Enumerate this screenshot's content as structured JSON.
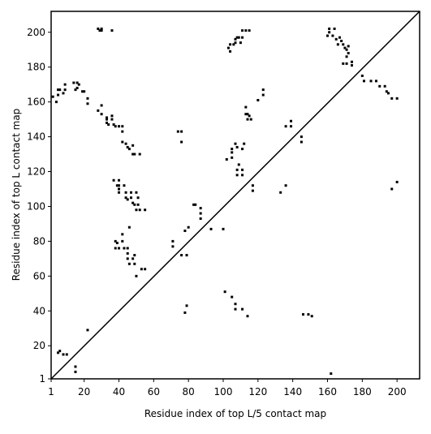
{
  "chart_data": {
    "type": "scatter",
    "xlabel": "Residue index of top L/5 contact map",
    "ylabel": "Residue index of top L contact map",
    "color": "#000000",
    "xlim": [
      1,
      213
    ],
    "ylim": [
      1,
      212
    ],
    "xticks": [
      1,
      20,
      40,
      60,
      80,
      100,
      120,
      140,
      160,
      180,
      200
    ],
    "yticks": [
      1,
      20,
      40,
      60,
      80,
      100,
      120,
      140,
      160,
      180,
      200
    ],
    "x": [
      2,
      4,
      5,
      5,
      6,
      8,
      9,
      9,
      14,
      15,
      16,
      16,
      17,
      19,
      20,
      22,
      22,
      28,
      29,
      30,
      30,
      36,
      28,
      30,
      30,
      33,
      33,
      33,
      34,
      36,
      36,
      37,
      38,
      40,
      42,
      42,
      42,
      44,
      45,
      46,
      48,
      49,
      48,
      52,
      37,
      39,
      40,
      40,
      40,
      40,
      43,
      44,
      44,
      45,
      47,
      47,
      48,
      49,
      50,
      51,
      51,
      52,
      55,
      50,
      46,
      42,
      38,
      39,
      38,
      40,
      43,
      42,
      45,
      45,
      45,
      46,
      49,
      48,
      49,
      50,
      53,
      55,
      71,
      71,
      76,
      79,
      78,
      80,
      78,
      79,
      74,
      76,
      76,
      83,
      84,
      87,
      87,
      87,
      93,
      100,
      101,
      105,
      107,
      107,
      111,
      114,
      102,
      105,
      105,
      105,
      107,
      108,
      108,
      108,
      109,
      111,
      111,
      111,
      112,
      113,
      113,
      114,
      114,
      115,
      116,
      117,
      117,
      120,
      123,
      123,
      133,
      136,
      136,
      139,
      139,
      145,
      145,
      146,
      149,
      151,
      162,
      200,
      197,
      103,
      104,
      104,
      106,
      107,
      107,
      108,
      109,
      110,
      111,
      111,
      113,
      115,
      160,
      161,
      161,
      163,
      164,
      165,
      166,
      167,
      168,
      169,
      170,
      171,
      171,
      172,
      172,
      174,
      174,
      169,
      171,
      180,
      181,
      185,
      188,
      190,
      193,
      194,
      195,
      197,
      200,
      5,
      6,
      8,
      10,
      15,
      15,
      22
    ],
    "values": [
      163,
      160,
      164,
      167,
      167,
      165,
      170,
      167,
      171,
      167,
      168,
      171,
      170,
      166,
      166,
      162,
      159,
      202,
      201,
      201,
      202,
      201,
      155,
      158,
      153,
      151,
      150,
      148,
      147,
      152,
      150,
      147,
      146,
      146,
      146,
      143,
      137,
      136,
      134,
      133,
      130,
      130,
      135,
      130,
      115,
      112,
      112,
      115,
      110,
      108,
      112,
      108,
      105,
      104,
      105,
      108,
      102,
      101,
      108,
      105,
      101,
      98,
      98,
      98,
      88,
      84,
      80,
      79,
      76,
      76,
      76,
      80,
      76,
      73,
      70,
      67,
      67,
      70,
      72,
      60,
      64,
      64,
      80,
      77,
      72,
      72,
      86,
      88,
      39,
      43,
      143,
      143,
      137,
      101,
      101,
      99,
      96,
      93,
      87,
      87,
      51,
      48,
      44,
      41,
      41,
      37,
      127,
      128,
      131,
      133,
      136,
      134,
      121,
      118,
      124,
      121,
      118,
      133,
      136,
      157,
      153,
      153,
      150,
      152,
      150,
      112,
      109,
      161,
      164,
      167,
      108,
      112,
      146,
      146,
      149,
      140,
      137,
      38,
      38,
      37,
      4,
      114,
      110,
      191,
      189,
      193,
      193,
      194,
      196,
      197,
      197,
      194,
      197,
      201,
      201,
      201,
      198,
      202,
      200,
      198,
      202,
      196,
      193,
      197,
      195,
      193,
      191,
      190,
      186,
      192,
      188,
      183,
      181,
      182,
      182,
      175,
      172,
      172,
      172,
      169,
      169,
      166,
      165,
      162,
      162,
      16,
      17,
      15,
      15,
      8,
      5,
      29
    ]
  }
}
